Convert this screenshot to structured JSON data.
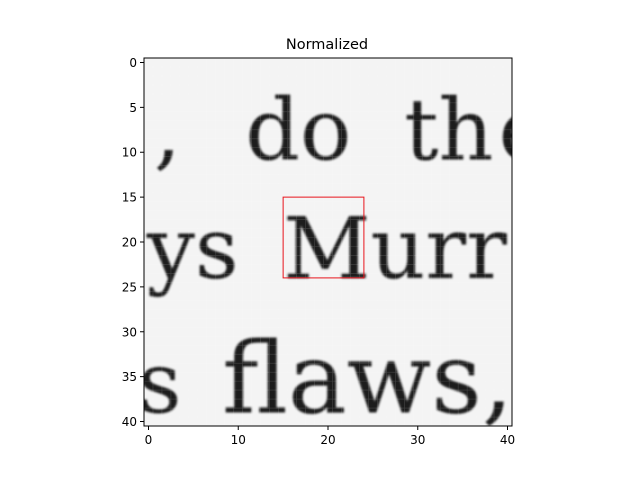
{
  "chart_data": {
    "type": "heatmap",
    "title": "Normalized",
    "xlabel": "",
    "ylabel": "",
    "xlim": [
      -0.5,
      40.5
    ],
    "ylim": [
      40.5,
      -0.5
    ],
    "x_ticks": [
      0,
      10,
      20,
      30,
      40
    ],
    "y_ticks": [
      0,
      5,
      10,
      15,
      20,
      25,
      30,
      35,
      40
    ],
    "colormap": "gray",
    "grid": false,
    "image_description_note": "",
    "rows": 41,
    "cols": 41,
    "highlight_rect": {
      "x0": 15,
      "y0": 15,
      "x1": 24,
      "y1": 24,
      "color": "#e8141c"
    },
    "glyphs": [
      {
        "text": "do",
        "x": 10.8,
        "y": 10.8,
        "size": 9.5
      },
      {
        "text": "th",
        "x": 28.5,
        "y": 10.8,
        "size": 9.5
      },
      {
        "text": "e",
        "x": 39.0,
        "y": 10.8,
        "size": 9.5
      },
      {
        "text": ",",
        "x": 0.6,
        "y": 10.8,
        "size": 9.5
      },
      {
        "text": "ys",
        "x": -0.2,
        "y": 24.0,
        "size": 9.5
      },
      {
        "text": "Murr",
        "x": 15.0,
        "y": 24.0,
        "size": 9.5
      },
      {
        "text": "flaws,",
        "x": 8.2,
        "y": 39.0,
        "size": 11
      },
      {
        "text": "s",
        "x": -1.2,
        "y": 39.0,
        "size": 9.5
      }
    ]
  }
}
